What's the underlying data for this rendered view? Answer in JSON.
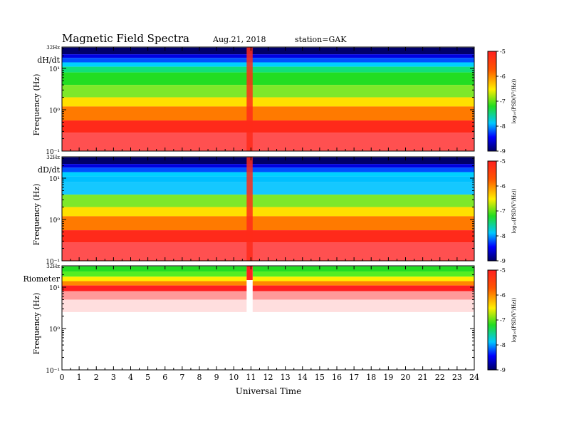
{
  "header": {
    "title": "Magnetic  Field  Spectra",
    "date": "Aug.21, 2018",
    "station": "station=GAK"
  },
  "chart_data": [
    {
      "type": "heatmap",
      "panel_label": "dH/dt",
      "ylabel": "Frequency  (Hz)",
      "xlabel": "",
      "y_scale": "log",
      "y_top_label": "32Hz",
      "ytick_labels": [
        "10¹",
        "10⁰",
        "10⁻¹"
      ],
      "xlim": [
        0,
        24
      ],
      "ylim": [
        0.1,
        32
      ],
      "colorbar": {
        "label": "log₁₀(PSD(V²/Hz))",
        "range": [
          -9,
          -5
        ],
        "tick_labels": [
          "-5",
          "-6",
          "-7",
          "-8",
          "-9"
        ]
      }
    },
    {
      "type": "heatmap",
      "panel_label": "dD/dt",
      "ylabel": "Frequency  (Hz)",
      "xlabel": "",
      "y_scale": "log",
      "y_top_label": "32Hz",
      "ytick_labels": [
        "10¹",
        "10⁰",
        "10⁻¹"
      ],
      "xlim": [
        0,
        24
      ],
      "ylim": [
        0.1,
        32
      ],
      "colorbar": {
        "label": "log₁₀(PSD(V²/Hz))",
        "range": [
          -9,
          -5
        ],
        "tick_labels": [
          "-5",
          "-6",
          "-7",
          "-8",
          "-9"
        ]
      }
    },
    {
      "type": "heatmap",
      "panel_label": "Riometer",
      "ylabel": "Frequency  (Hz)",
      "xlabel": "Universal Time",
      "y_scale": "log",
      "y_top_label": "32Hz",
      "ytick_labels": [
        "10¹",
        "10⁰",
        "10⁻¹"
      ],
      "xlim": [
        0,
        24
      ],
      "ylim": [
        0.1,
        32
      ],
      "xtick_labels": [
        "0",
        "1",
        "2",
        "3",
        "4",
        "5",
        "6",
        "7",
        "8",
        "9",
        "10",
        "11",
        "12",
        "13",
        "14",
        "15",
        "16",
        "17",
        "18",
        "19",
        "20",
        "21",
        "22",
        "23",
        "24"
      ],
      "colorbar": {
        "label": "log₁₀(PSD(V²/Hz))",
        "range": [
          -9,
          -5
        ],
        "tick_labels": [
          "-5",
          "-6",
          "-7",
          "-8",
          "-9"
        ]
      }
    }
  ]
}
